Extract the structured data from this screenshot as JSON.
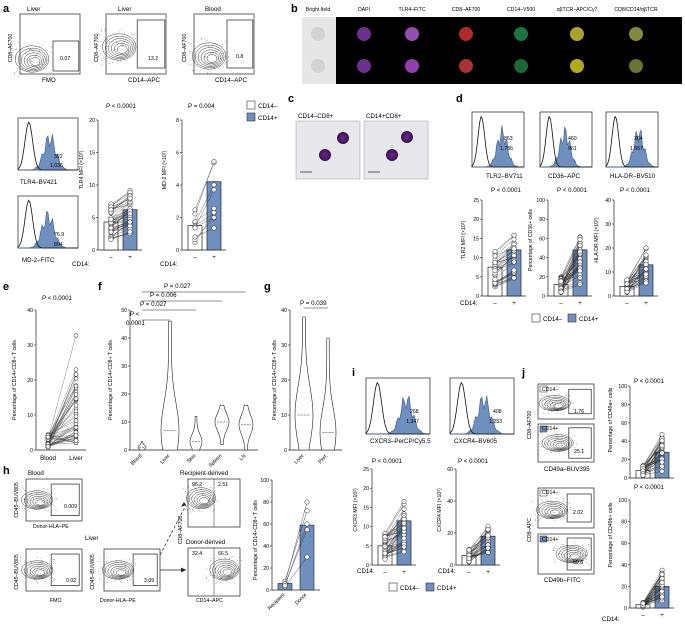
{
  "panels": {
    "a": {
      "letter": "a",
      "plot_titles": [
        "Liver",
        "Liver",
        "Blood"
      ],
      "y_labels": [
        "CD8–AF700",
        "CD8–AF700",
        "CD8–AF700"
      ],
      "x_labels": [
        "FMO",
        "CD14–APC",
        "CD14–APC"
      ],
      "gate_values": [
        "0.07",
        "13.2",
        "0.8"
      ],
      "hist1": {
        "values": [
          "322",
          "1,036"
        ],
        "xlabel": "TLR4–BV421"
      },
      "hist2": {
        "values": [
          "76.9",
          "804"
        ],
        "xlabel": "MD-2–FITC"
      },
      "bar1": {
        "ylabel": "TLR4 MFI (×10²)",
        "p": "P < 0.0001",
        "yticks": [
          "0",
          "5",
          "10",
          "15",
          "20"
        ]
      },
      "bar2": {
        "ylabel": "MD-2 MFI (×10²)",
        "p": "P = 0.004",
        "yticks": [
          "0",
          "2",
          "4",
          "6",
          "8"
        ]
      },
      "xcat_label": "CD14:",
      "xcats": [
        "–",
        "+"
      ],
      "legend": [
        "CD14–",
        "CD14+"
      ]
    },
    "b": {
      "letter": "b",
      "columns": [
        "Bright field",
        "DAPI",
        "TLR4–FITC",
        "CD8–AF700",
        "CD14–V500",
        "αβTCR–APC/Cy7",
        "CD8/CD14/αβTCR"
      ]
    },
    "c": {
      "letter": "c",
      "labels": [
        "CD14–CD8+",
        "CD14+CD8+"
      ]
    },
    "d": {
      "letter": "d",
      "hists": [
        {
          "xlabel": "TLR2–BV711",
          "values": [
            "863",
            "1,786"
          ]
        },
        {
          "xlabel": "CD36–APC",
          "values": [
            "460",
            "961"
          ]
        },
        {
          "xlabel": "HLA-DR–BV510",
          "values": [
            "364",
            "1,567"
          ]
        }
      ],
      "bars": [
        {
          "ylabel": "TLR2 MFI (×10²)",
          "p": "P < 0.0001",
          "yticks": [
            "0",
            "5",
            "10",
            "15",
            "20",
            "25"
          ]
        },
        {
          "ylabel": "Percentage of CD36+ cells",
          "p": "P < 0.0001",
          "yticks": [
            "0",
            "20",
            "40",
            "60",
            "80",
            "100"
          ]
        },
        {
          "ylabel": "HLA-DR MFI (×10²)",
          "p": "P < 0.0001",
          "yticks": [
            "0",
            "10",
            "20",
            "30",
            "40"
          ]
        }
      ],
      "xcat_label": "CD14:",
      "xcats": [
        "–",
        "+"
      ],
      "legend": [
        "CD14–",
        "CD14+"
      ]
    },
    "e": {
      "letter": "e",
      "ylabel": "Percentage of CD14+CD8+ T cells",
      "p": "P < 0.0001",
      "xcats": [
        "Blood",
        "Liver"
      ],
      "yticks": [
        "0",
        "10",
        "20",
        "30",
        "40"
      ]
    },
    "f": {
      "letter": "f",
      "ylabel": "Percentage of CD14+CD8+ T cells",
      "p_values": [
        "P = 0.027",
        "P = 0.006",
        "P = 0.027",
        "P <",
        "0.0001"
      ],
      "xcats": [
        "Blood",
        "Liver",
        "Skin",
        "Spleen",
        "LN"
      ],
      "yticks": [
        "0",
        "10",
        "20",
        "30",
        "40",
        "50"
      ]
    },
    "g": {
      "letter": "g",
      "ylabel": "Percentage of CD14+CD8+ T cells",
      "p": "P = 0.039",
      "xcats": [
        "Liver",
        "Perf."
      ],
      "yticks": [
        "0",
        "10",
        "20",
        "30",
        "40"
      ]
    },
    "h": {
      "letter": "h",
      "blood_title": "Blood",
      "liver_title": "Liver",
      "plots": [
        {
          "ylabel": "CD45–BUV805",
          "xlabel": "Donor-HLA–PE",
          "gate": "0.009"
        },
        {
          "ylabel": "CD45–BUV805",
          "xlabel": "FMO",
          "gate": "0.02"
        },
        {
          "ylabel": "CD45–BUV805",
          "xlabel": "Donor-HLA–PE",
          "gate": "3.09"
        }
      ],
      "recipient_title": "Recipient-derived",
      "donor_title": "Donor-derived",
      "quad_ylabel": "CD8–AF700",
      "quad_xlabel": "CD14–APC",
      "recipient_vals": [
        "96.2",
        "2.51"
      ],
      "donor_vals": [
        "32.4",
        "66.5"
      ],
      "bar": {
        "ylabel": "Percentage of CD14+CD8+ T cells",
        "xcats": [
          "Recipient",
          "Donor"
        ],
        "yticks": [
          "0",
          "20",
          "40",
          "60",
          "80",
          "100"
        ]
      }
    },
    "i": {
      "letter": "i",
      "hists": [
        {
          "xlabel": "CXCR3–PerCP/Cy5.5",
          "values": [
            "268",
            "1,347"
          ]
        },
        {
          "xlabel": "CXCR4–BV605",
          "values": [
            "408",
            "1,253"
          ]
        }
      ],
      "bars": [
        {
          "ylabel": "CXCR3 MFI (×10²)",
          "p": "P < 0.0001",
          "yticks": [
            "0",
            "5",
            "10",
            "15",
            "20",
            "25"
          ]
        },
        {
          "ylabel": "CXCR4 MFI (×10²)",
          "p": "P < 0.0001",
          "yticks": [
            "0",
            "20",
            "40",
            "60"
          ]
        }
      ],
      "xcat_label": "CD14:",
      "xcats": [
        "–",
        "+"
      ],
      "legend": [
        "CD14–",
        "CD14+"
      ]
    },
    "j": {
      "letter": "j",
      "top": {
        "ylabel": "CD8–AF700",
        "xlabel": "CD49a–BUV395",
        "neg_label": "CD14–",
        "pos_label": "CD14+",
        "neg_val": "1.76",
        "pos_val": "25.1"
      },
      "bottom": {
        "ylabel": "CD8–APC",
        "xlabel": "CD49b–FITC",
        "neg_label": "CD14–",
        "pos_label": "CD14+",
        "neg_val": "2.02",
        "pos_val": "59.8"
      },
      "bars": [
        {
          "ylabel": "Percentage of CD49a+ cells",
          "p": "P < 0.0001",
          "yticks": [
            "0",
            "20",
            "40",
            "60",
            "80",
            "100"
          ]
        },
        {
          "ylabel": "Percentage of CD49b+ cells",
          "p": "P < 0.0001",
          "yticks": [
            "0",
            "20",
            "40",
            "60",
            "80",
            "100"
          ]
        }
      ],
      "xcat_label": "CD14:",
      "xcats": [
        "–",
        "+"
      ]
    }
  },
  "chart_data": [
    {
      "type": "bar",
      "ylabel": "TLR4 MFI (×10²)",
      "categories": [
        "CD14–",
        "CD14+"
      ],
      "values": [
        4.3,
        6.2
      ],
      "ylim": [
        0,
        20
      ]
    },
    {
      "type": "bar",
      "ylabel": "MD-2 MFI (×10²)",
      "categories": [
        "CD14–",
        "CD14+"
      ],
      "values": [
        1.5,
        4.2
      ],
      "ylim": [
        0,
        8
      ]
    },
    {
      "type": "bar",
      "ylabel": "TLR2 MFI (×10²)",
      "categories": [
        "CD14–",
        "CD14+"
      ],
      "values": [
        7.5,
        12
      ],
      "ylim": [
        0,
        25
      ]
    },
    {
      "type": "bar",
      "ylabel": "Percentage of CD36+ cells",
      "categories": [
        "CD14–",
        "CD14+"
      ],
      "values": [
        12,
        48
      ],
      "ylim": [
        0,
        100
      ]
    },
    {
      "type": "bar",
      "ylabel": "HLA-DR MFI (×10²)",
      "categories": [
        "CD14–",
        "CD14+"
      ],
      "values": [
        4,
        13
      ],
      "ylim": [
        0,
        40
      ]
    },
    {
      "type": "scatter",
      "ylabel": "Percentage of CD14+CD8+ T cells",
      "categories": [
        "Blood",
        "Liver"
      ],
      "values": [
        1.5,
        9
      ],
      "ylim": [
        0,
        40
      ]
    },
    {
      "type": "bar",
      "ylabel": "Percentage of CD14+CD8+ T cells",
      "categories": [
        "Recipient",
        "Donor"
      ],
      "values": [
        6,
        59
      ],
      "ylim": [
        0,
        100
      ]
    },
    {
      "type": "bar",
      "ylabel": "CXCR3 MFI (×10²)",
      "categories": [
        "CD14–",
        "CD14+"
      ],
      "values": [
        5,
        11.5
      ],
      "ylim": [
        0,
        25
      ]
    },
    {
      "type": "bar",
      "ylabel": "CXCR4 MFI (×10²)",
      "categories": [
        "CD14–",
        "CD14+"
      ],
      "values": [
        6,
        18
      ],
      "ylim": [
        0,
        60
      ]
    },
    {
      "type": "bar",
      "ylabel": "Percentage of CD49a+ cells",
      "categories": [
        "CD14–",
        "CD14+"
      ],
      "values": [
        8,
        28
      ],
      "ylim": [
        0,
        100
      ]
    },
    {
      "type": "bar",
      "ylabel": "Percentage of CD49b+ cells",
      "categories": [
        "CD14–",
        "CD14+"
      ],
      "values": [
        3,
        20
      ],
      "ylim": [
        0,
        100
      ]
    }
  ]
}
